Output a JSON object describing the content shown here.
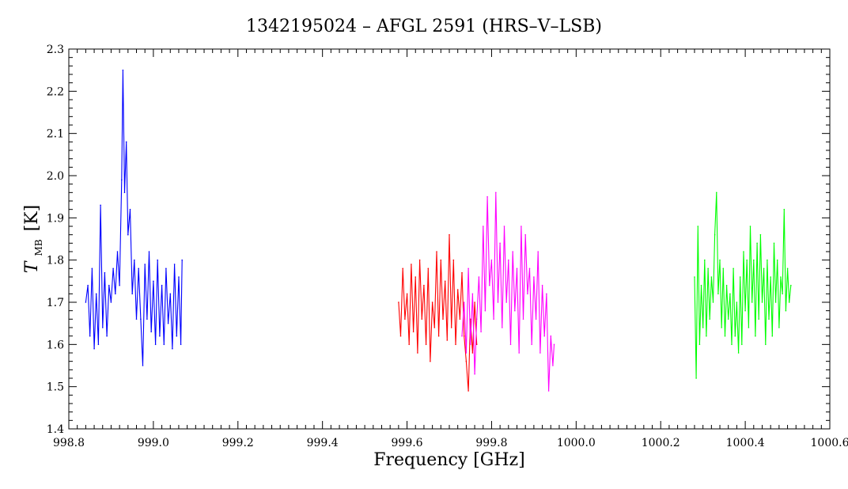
{
  "chart_data": {
    "type": "line",
    "title": "1342195024 – AFGL 2591 (HRS–V–LSB)",
    "xlabel": "Frequency [GHz]",
    "ylabel_main": "T",
    "ylabel_sub": "MB",
    "ylabel_unit": "[K]",
    "xlim": [
      998.8,
      1000.6
    ],
    "ylim": [
      1.4,
      2.3
    ],
    "xticks": [
      "998.8",
      "999.0",
      "999.2",
      "999.4",
      "999.6",
      "999.8",
      "1000.0",
      "1000.2",
      "1000.4",
      "1000.6"
    ],
    "yticks": [
      "1.4",
      "1.5",
      "1.6",
      "1.7",
      "1.8",
      "1.9",
      "2.0",
      "2.1",
      "2.2",
      "2.3"
    ],
    "grid": false,
    "series": [
      {
        "color": "#0000ff",
        "points": [
          [
            998.84,
            1.7
          ],
          [
            998.845,
            1.74
          ],
          [
            998.85,
            1.62
          ],
          [
            998.855,
            1.78
          ],
          [
            998.86,
            1.59
          ],
          [
            998.865,
            1.72
          ],
          [
            998.87,
            1.6
          ],
          [
            998.875,
            1.93
          ],
          [
            998.88,
            1.64
          ],
          [
            998.885,
            1.77
          ],
          [
            998.89,
            1.62
          ],
          [
            998.895,
            1.74
          ],
          [
            998.9,
            1.7
          ],
          [
            998.905,
            1.78
          ],
          [
            998.91,
            1.72
          ],
          [
            998.915,
            1.82
          ],
          [
            998.92,
            1.74
          ],
          [
            998.925,
            1.99
          ],
          [
            998.928,
            2.25
          ],
          [
            998.932,
            1.96
          ],
          [
            998.936,
            2.08
          ],
          [
            998.94,
            1.86
          ],
          [
            998.945,
            1.92
          ],
          [
            998.95,
            1.72
          ],
          [
            998.955,
            1.8
          ],
          [
            998.96,
            1.66
          ],
          [
            998.965,
            1.78
          ],
          [
            998.97,
            1.66
          ],
          [
            998.975,
            1.55
          ],
          [
            998.98,
            1.79
          ],
          [
            998.985,
            1.66
          ],
          [
            998.99,
            1.82
          ],
          [
            998.995,
            1.63
          ],
          [
            999.0,
            1.75
          ],
          [
            999.005,
            1.6
          ],
          [
            999.01,
            1.8
          ],
          [
            999.015,
            1.62
          ],
          [
            999.02,
            1.74
          ],
          [
            999.025,
            1.6
          ],
          [
            999.03,
            1.78
          ],
          [
            999.035,
            1.65
          ],
          [
            999.04,
            1.72
          ],
          [
            999.045,
            1.59
          ],
          [
            999.05,
            1.79
          ],
          [
            999.055,
            1.62
          ],
          [
            999.06,
            1.76
          ],
          [
            999.065,
            1.6
          ],
          [
            999.068,
            1.8
          ]
        ]
      },
      {
        "color": "#ff0000",
        "points": [
          [
            999.58,
            1.7
          ],
          [
            999.585,
            1.62
          ],
          [
            999.59,
            1.78
          ],
          [
            999.595,
            1.66
          ],
          [
            999.6,
            1.72
          ],
          [
            999.605,
            1.6
          ],
          [
            999.61,
            1.79
          ],
          [
            999.615,
            1.63
          ],
          [
            999.62,
            1.76
          ],
          [
            999.625,
            1.58
          ],
          [
            999.63,
            1.8
          ],
          [
            999.635,
            1.66
          ],
          [
            999.64,
            1.74
          ],
          [
            999.645,
            1.6
          ],
          [
            999.65,
            1.78
          ],
          [
            999.655,
            1.56
          ],
          [
            999.66,
            1.7
          ],
          [
            999.665,
            1.64
          ],
          [
            999.67,
            1.82
          ],
          [
            999.675,
            1.62
          ],
          [
            999.68,
            1.8
          ],
          [
            999.685,
            1.66
          ],
          [
            999.69,
            1.75
          ],
          [
            999.695,
            1.61
          ],
          [
            999.7,
            1.86
          ],
          [
            999.705,
            1.64
          ],
          [
            999.71,
            1.8
          ],
          [
            999.715,
            1.6
          ],
          [
            999.72,
            1.73
          ],
          [
            999.725,
            1.66
          ],
          [
            999.73,
            1.77
          ],
          [
            999.735,
            1.62
          ],
          [
            999.74,
            1.56
          ],
          [
            999.745,
            1.49
          ],
          [
            999.75,
            1.66
          ],
          [
            999.755,
            1.58
          ],
          [
            999.76,
            1.7
          ],
          [
            999.765,
            1.6
          ]
        ]
      },
      {
        "color": "#ff00ff",
        "points": [
          [
            999.73,
            1.62
          ],
          [
            999.735,
            1.7
          ],
          [
            999.74,
            1.58
          ],
          [
            999.745,
            1.78
          ],
          [
            999.75,
            1.6
          ],
          [
            999.755,
            1.72
          ],
          [
            999.76,
            1.53
          ],
          [
            999.765,
            1.66
          ],
          [
            999.77,
            1.76
          ],
          [
            999.775,
            1.63
          ],
          [
            999.78,
            1.88
          ],
          [
            999.785,
            1.68
          ],
          [
            999.79,
            1.95
          ],
          [
            999.795,
            1.74
          ],
          [
            999.8,
            1.8
          ],
          [
            999.805,
            1.66
          ],
          [
            999.81,
            1.96
          ],
          [
            999.815,
            1.7
          ],
          [
            999.82,
            1.84
          ],
          [
            999.825,
            1.64
          ],
          [
            999.83,
            1.88
          ],
          [
            999.835,
            1.7
          ],
          [
            999.84,
            1.8
          ],
          [
            999.845,
            1.6
          ],
          [
            999.85,
            1.82
          ],
          [
            999.855,
            1.68
          ],
          [
            999.86,
            1.78
          ],
          [
            999.865,
            1.58
          ],
          [
            999.87,
            1.88
          ],
          [
            999.875,
            1.66
          ],
          [
            999.88,
            1.86
          ],
          [
            999.885,
            1.72
          ],
          [
            999.89,
            1.78
          ],
          [
            999.895,
            1.6
          ],
          [
            999.9,
            1.76
          ],
          [
            999.905,
            1.66
          ],
          [
            999.91,
            1.82
          ],
          [
            999.915,
            1.58
          ],
          [
            999.92,
            1.74
          ],
          [
            999.925,
            1.62
          ],
          [
            999.93,
            1.72
          ],
          [
            999.935,
            1.49
          ],
          [
            999.94,
            1.62
          ],
          [
            999.945,
            1.55
          ],
          [
            999.948,
            1.6
          ]
        ]
      },
      {
        "color": "#00ff00",
        "points": [
          [
            1000.28,
            1.76
          ],
          [
            1000.284,
            1.52
          ],
          [
            1000.288,
            1.88
          ],
          [
            1000.292,
            1.6
          ],
          [
            1000.296,
            1.74
          ],
          [
            1000.3,
            1.64
          ],
          [
            1000.304,
            1.8
          ],
          [
            1000.308,
            1.62
          ],
          [
            1000.312,
            1.78
          ],
          [
            1000.316,
            1.66
          ],
          [
            1000.32,
            1.76
          ],
          [
            1000.324,
            1.7
          ],
          [
            1000.328,
            1.86
          ],
          [
            1000.332,
            1.96
          ],
          [
            1000.336,
            1.72
          ],
          [
            1000.34,
            1.8
          ],
          [
            1000.344,
            1.64
          ],
          [
            1000.348,
            1.78
          ],
          [
            1000.352,
            1.62
          ],
          [
            1000.356,
            1.74
          ],
          [
            1000.36,
            1.66
          ],
          [
            1000.364,
            1.72
          ],
          [
            1000.368,
            1.6
          ],
          [
            1000.372,
            1.78
          ],
          [
            1000.376,
            1.62
          ],
          [
            1000.38,
            1.7
          ],
          [
            1000.384,
            1.58
          ],
          [
            1000.388,
            1.76
          ],
          [
            1000.392,
            1.6
          ],
          [
            1000.396,
            1.82
          ],
          [
            1000.4,
            1.68
          ],
          [
            1000.404,
            1.8
          ],
          [
            1000.408,
            1.64
          ],
          [
            1000.412,
            1.88
          ],
          [
            1000.416,
            1.7
          ],
          [
            1000.42,
            1.8
          ],
          [
            1000.424,
            1.62
          ],
          [
            1000.428,
            1.84
          ],
          [
            1000.432,
            1.66
          ],
          [
            1000.436,
            1.86
          ],
          [
            1000.44,
            1.7
          ],
          [
            1000.444,
            1.78
          ],
          [
            1000.448,
            1.6
          ],
          [
            1000.452,
            1.8
          ],
          [
            1000.456,
            1.66
          ],
          [
            1000.46,
            1.76
          ],
          [
            1000.464,
            1.62
          ],
          [
            1000.468,
            1.84
          ],
          [
            1000.472,
            1.7
          ],
          [
            1000.476,
            1.8
          ],
          [
            1000.48,
            1.64
          ],
          [
            1000.484,
            1.76
          ],
          [
            1000.488,
            1.72
          ],
          [
            1000.492,
            1.92
          ],
          [
            1000.496,
            1.68
          ],
          [
            1000.5,
            1.78
          ],
          [
            1000.504,
            1.7
          ],
          [
            1000.508,
            1.74
          ]
        ]
      }
    ]
  }
}
